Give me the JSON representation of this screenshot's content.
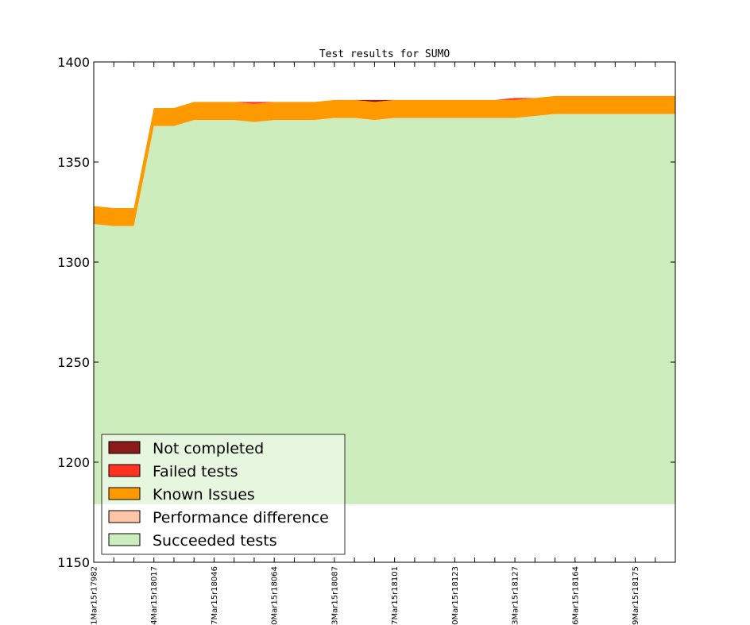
{
  "chart_data": {
    "type": "area",
    "title": "Test results for SUMO",
    "xlabel": "",
    "ylabel": "",
    "ylim": [
      1150,
      1400
    ],
    "yticks": [
      1150,
      1200,
      1250,
      1300,
      1350,
      1400
    ],
    "baseline": 1179,
    "x_tick_labels": [
      "1Mar15r17982",
      "4Mar15r18017",
      "7Mar15r18046",
      "0Mar15r18064",
      "3Mar15r18087",
      "7Mar15r18101",
      "0Mar15r18123",
      "3Mar15r18127",
      "6Mar15r18164",
      "9Mar15r18175"
    ],
    "x_tick_positions": [
      0,
      3,
      6,
      9,
      12,
      15,
      18,
      21,
      24,
      27
    ],
    "series": [
      {
        "name": "Succeeded tests",
        "color": "#ceedbc",
        "values": [
          1319,
          1318,
          1318,
          1368,
          1368,
          1371,
          1371,
          1371,
          1370,
          1371,
          1371,
          1371,
          1372,
          1372,
          1371,
          1372,
          1372,
          1372,
          1372,
          1372,
          1372,
          1372,
          1373,
          1374,
          1374,
          1374,
          1374,
          1374,
          1374,
          1374
        ]
      },
      {
        "name": "Performance difference",
        "color": "#fdc4a6",
        "values": [
          0,
          0,
          0,
          0,
          0,
          0,
          0,
          0,
          0,
          0,
          0,
          0,
          0,
          0,
          0,
          0,
          0,
          0,
          0,
          0,
          0,
          0,
          0,
          0,
          0,
          0,
          0,
          0,
          0,
          0
        ]
      },
      {
        "name": "Known Issues",
        "color": "#ff9900",
        "values": [
          9,
          9,
          9,
          9,
          9,
          9,
          9,
          9,
          9,
          9,
          9,
          9,
          9,
          9,
          9,
          9,
          9,
          9,
          9,
          9,
          9,
          9,
          9,
          9,
          9,
          9,
          9,
          9,
          9,
          9
        ]
      },
      {
        "name": "Failed tests",
        "color": "#ff3322",
        "values": [
          0,
          0,
          0,
          0,
          0,
          0,
          0,
          0,
          1,
          0,
          0,
          0,
          0,
          0,
          0,
          0,
          0,
          0,
          0,
          0,
          0,
          1,
          0,
          0,
          0,
          0,
          0,
          0,
          0,
          0
        ]
      },
      {
        "name": "Not completed",
        "color": "#8b1a1a",
        "values": [
          0,
          0,
          0,
          0,
          0,
          0,
          0,
          0,
          0,
          0,
          0,
          0,
          0,
          0,
          1,
          0,
          0,
          0,
          0,
          0,
          0,
          0,
          0,
          0,
          0,
          0,
          0,
          0,
          0,
          0
        ]
      }
    ],
    "legend": {
      "placement": "lower-left",
      "entries": [
        "Not completed",
        "Failed tests",
        "Known Issues",
        "Performance difference",
        "Succeeded tests"
      ]
    },
    "grid": false
  }
}
